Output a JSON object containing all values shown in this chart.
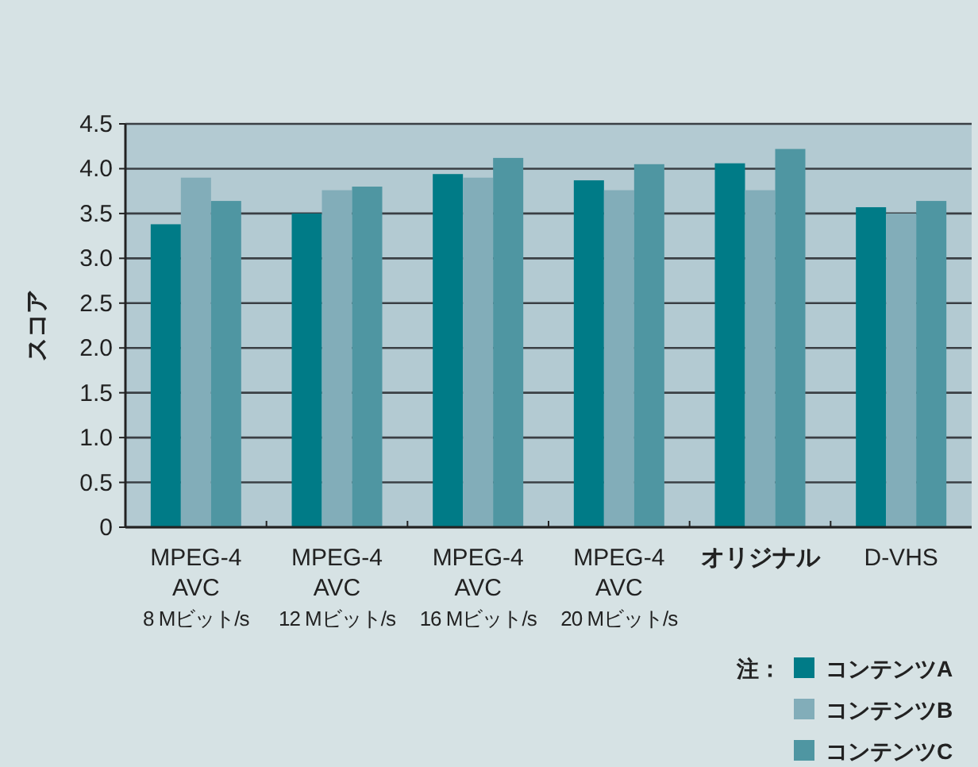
{
  "chart_data": {
    "type": "bar",
    "ylabel": "スコア",
    "legend_title": "注：",
    "legend": "bottom right",
    "grid": "y",
    "categories": [
      "MPEG-4\nAVC\n8 Mビット/s",
      "MPEG-4\nAVC\n12 Mビット/s",
      "MPEG-4\nAVC\n16 Mビット/s",
      "MPEG-4\nAVC\n20 Mビット/s",
      "オリジナル",
      "D-VHS"
    ],
    "series": [
      {
        "name": "コンテンツA",
        "color": "#007b87",
        "values": [
          3.38,
          3.5,
          3.94,
          3.87,
          4.06,
          3.57
        ]
      },
      {
        "name": "コンテンツB",
        "color": "#82adb9",
        "values": [
          3.9,
          3.76,
          3.9,
          3.76,
          3.76,
          3.5
        ]
      },
      {
        "name": "コンテンツC",
        "color": "#4f96a2",
        "values": [
          3.64,
          3.8,
          4.12,
          4.05,
          4.22,
          3.64
        ]
      }
    ],
    "ylim": [
      0,
      4.5
    ],
    "yticks": [
      0,
      0.5,
      {
        "value": 1,
        "label": "1.0"
      },
      1.5,
      {
        "value": 2,
        "label": "2.0"
      },
      2.5,
      {
        "value": 3,
        "label": "3.0"
      },
      3.5,
      {
        "value": 4,
        "label": "4.0"
      },
      4.5
    ]
  }
}
